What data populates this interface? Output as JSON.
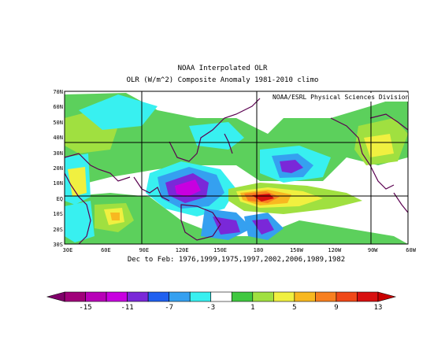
{
  "title": "NOAA Interpolated OLR",
  "subtitle": "OLR (W/m^2) Composite Anomaly 1981-2010 climo",
  "credit": "NOAA/ESRL Physical Sciences Division",
  "period_label": "Dec to Feb: 1976,1999,1975,1997,2002,2006,1989,1982",
  "lat_labels": [
    "70N",
    "60N",
    "50N",
    "40N",
    "30N",
    "20N",
    "10N",
    "EQ",
    "10S",
    "20S",
    "30S"
  ],
  "lon_labels": [
    "30E",
    "60E",
    "90E",
    "120E",
    "150E",
    "180",
    "150W",
    "120W",
    "90W",
    "60W"
  ],
  "colorbar": {
    "labels": [
      "-15",
      "-11",
      "-7",
      "-3",
      "1",
      "5",
      "9",
      "13"
    ],
    "colors": [
      "#a0007a",
      "#b800b8",
      "#c800e0",
      "#7a28d8",
      "#2060f0",
      "#35a0f0",
      "#38f0f0",
      "#ffffff",
      "#40c840",
      "#a0e040",
      "#f0f040",
      "#f8b820",
      "#f88020",
      "#f04818",
      "#d81010"
    ]
  }
}
